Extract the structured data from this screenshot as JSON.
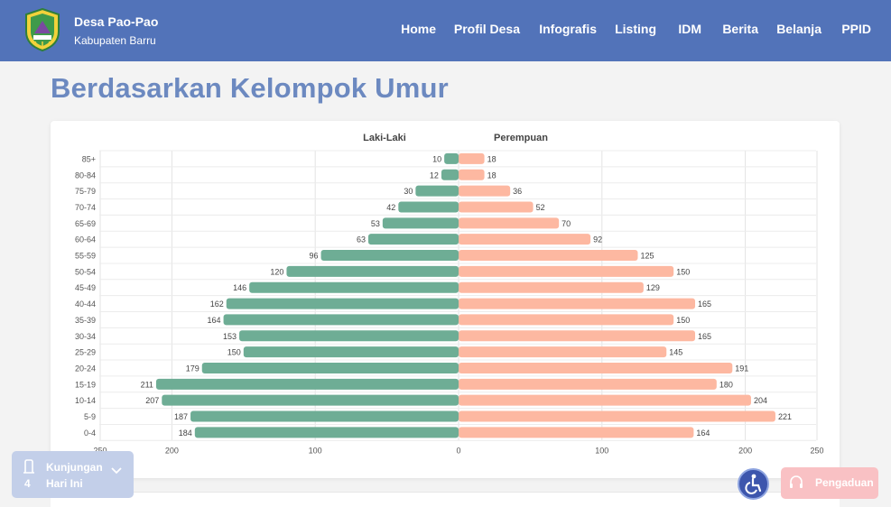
{
  "site": {
    "name": "Desa Pao-Pao",
    "subtitle": "Kabupaten Barru",
    "logo_icon": "regency-shield-logo"
  },
  "nav": {
    "items": [
      "Home",
      "Profil Desa",
      "Infografis",
      "Listing",
      "IDM",
      "Berita",
      "Belanja",
      "PPID"
    ]
  },
  "page": {
    "title": "Berdasarkan Kelompok Umur"
  },
  "chart_data": {
    "type": "bar",
    "orientation": "horizontal-population-pyramid",
    "categories": [
      "85+",
      "80-84",
      "75-79",
      "70-74",
      "65-69",
      "60-64",
      "55-59",
      "50-54",
      "45-49",
      "40-44",
      "35-39",
      "30-34",
      "25-29",
      "20-24",
      "15-19",
      "10-14",
      "5-9",
      "0-4"
    ],
    "series": [
      {
        "name": "Laki-Laki",
        "color": "#6ead95",
        "values": [
          10,
          12,
          30,
          42,
          53,
          63,
          96,
          120,
          146,
          162,
          164,
          153,
          150,
          179,
          211,
          207,
          187,
          184
        ]
      },
      {
        "name": "Perempuan",
        "color": "#fdb8a1",
        "values": [
          18,
          18,
          36,
          52,
          70,
          92,
          125,
          150,
          129,
          165,
          150,
          165,
          145,
          191,
          180,
          204,
          221,
          164
        ]
      }
    ],
    "xlim": [
      -250,
      250
    ],
    "xticks": [
      "250",
      "200",
      "100",
      "0",
      "100",
      "200",
      "250"
    ],
    "grid": true,
    "legend": "top-center",
    "data_labels": true
  },
  "widgets": {
    "visits": {
      "count": "4",
      "label_line1": "Kunjungan",
      "label_line2": "Hari Ini",
      "icon": "building-icon"
    },
    "accessibility": {
      "icon": "wheelchair-icon"
    },
    "complaint": {
      "label": "Pengaduan",
      "icon": "headset-icon"
    }
  },
  "colors": {
    "navbar": "#5273b9",
    "title": "#6c89c0",
    "male": "#6ead95",
    "female": "#fdb8a1"
  }
}
